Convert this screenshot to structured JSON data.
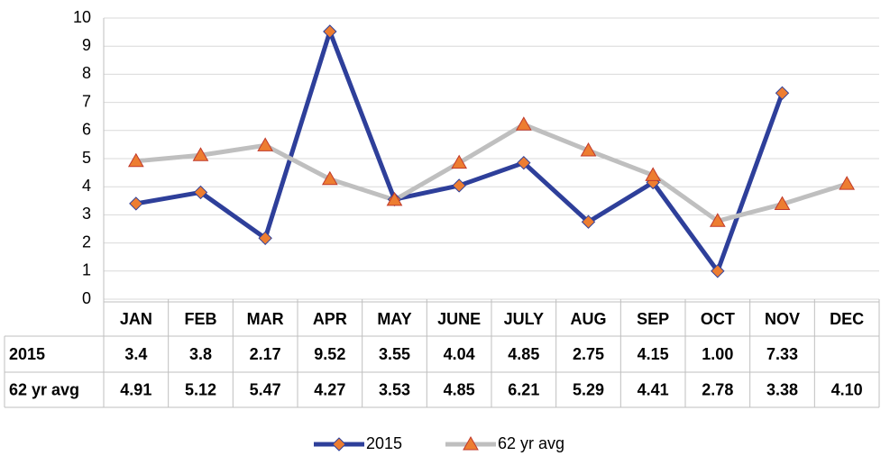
{
  "chart_data": {
    "type": "line",
    "categories": [
      "JAN",
      "FEB",
      "MAR",
      "APR",
      "MAY",
      "JUNE",
      "JULY",
      "AUG",
      "SEP",
      "OCT",
      "NOV",
      "DEC"
    ],
    "series": [
      {
        "name": "2015",
        "color": "#2e3f9a",
        "marker_color": "#ed7d31",
        "marker": "diamond",
        "values": [
          3.4,
          3.8,
          2.17,
          9.52,
          3.55,
          4.04,
          4.85,
          2.75,
          4.15,
          1.0,
          7.33,
          null
        ],
        "value_labels": [
          "3.4",
          "3.8",
          "2.17",
          "9.52",
          "3.55",
          "4.04",
          "4.85",
          "2.75",
          "4.15",
          "1.00",
          "7.33",
          null
        ]
      },
      {
        "name": "62 yr avg",
        "color": "#bfbfbf",
        "marker_color": "#ed7d31",
        "marker": "triangle",
        "values": [
          4.91,
          5.12,
          5.47,
          4.27,
          3.53,
          4.85,
          6.21,
          5.29,
          4.41,
          2.78,
          3.38,
          4.1
        ],
        "value_labels": [
          "4.91",
          "5.12",
          "5.47",
          "4.27",
          "3.53",
          "4.85",
          "6.21",
          "5.29",
          "4.41",
          "2.78",
          "3.38",
          "4.10"
        ]
      }
    ],
    "ylim": [
      0,
      10
    ],
    "yticks": [
      0,
      1,
      2,
      3,
      4,
      5,
      6,
      7,
      8,
      9,
      10
    ],
    "grid": true,
    "legend": "bottom"
  }
}
